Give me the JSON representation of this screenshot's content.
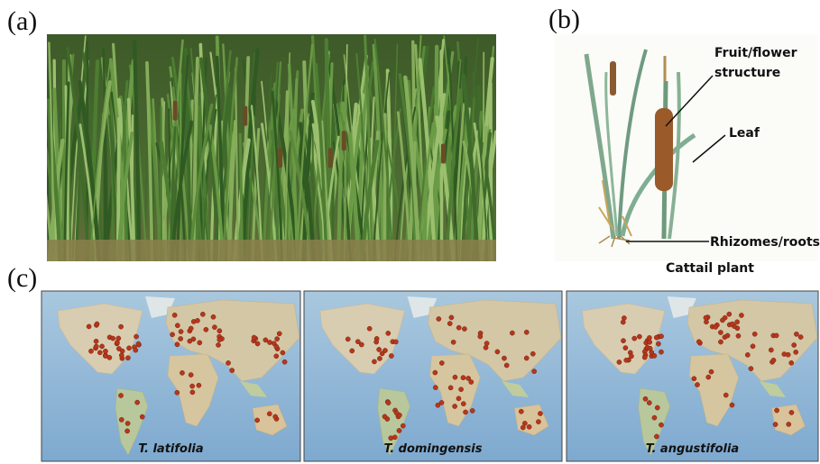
{
  "panel_a": {
    "label": "(a)"
  },
  "panel_b": {
    "label": "(b)",
    "callouts": [
      {
        "lines": [
          "Fruit/flower",
          "structure"
        ]
      },
      {
        "lines": [
          "Leaf"
        ]
      },
      {
        "lines": [
          "Rhizomes/roots"
        ]
      }
    ],
    "caption": "Cattail plant"
  },
  "panel_c": {
    "label": "(c)",
    "maps": [
      {
        "species": "T. latifolia"
      },
      {
        "species": "T. domingensis"
      },
      {
        "species": "T. angustifolia"
      }
    ]
  }
}
